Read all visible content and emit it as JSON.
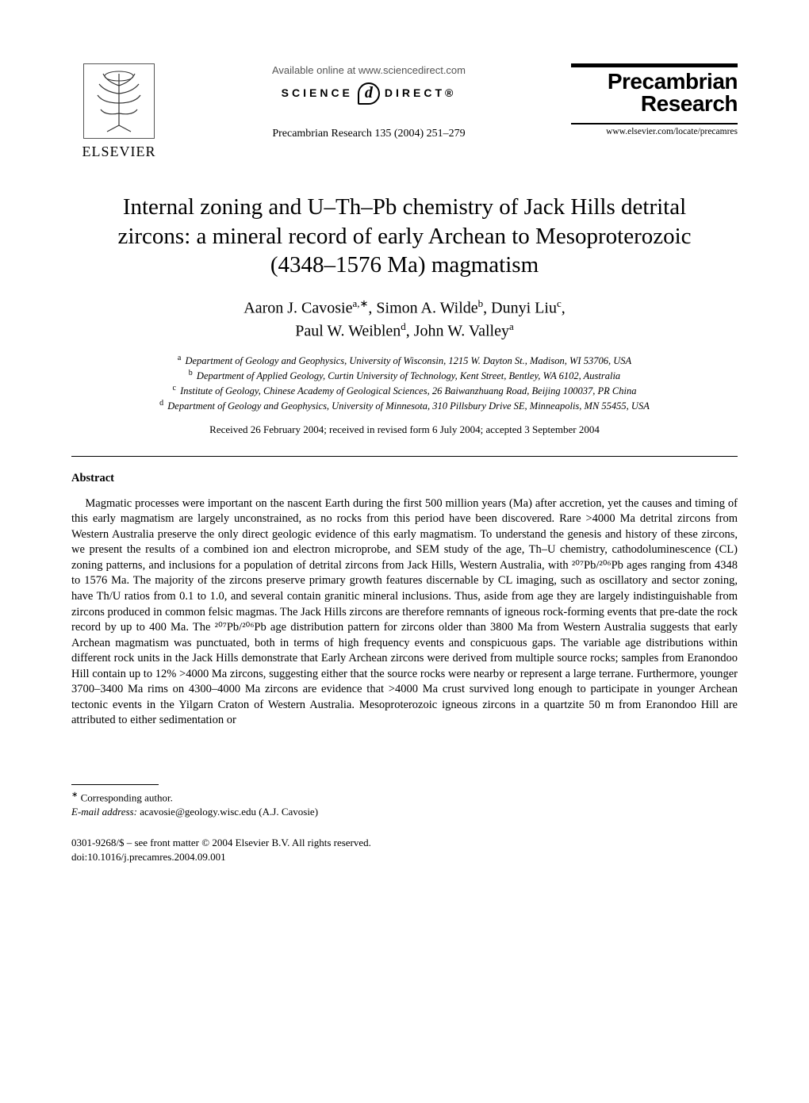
{
  "header": {
    "publisher_name": "ELSEVIER",
    "available_line": "Available online at www.sciencedirect.com",
    "sd_word1": "SCIENCE",
    "sd_at": "d",
    "sd_word2": "DIRECT®",
    "journal_ref": "Precambrian Research 135 (2004) 251–279",
    "journal_name_line1": "Precambrian",
    "journal_name_line2": "Research",
    "journal_url": "www.elsevier.com/locate/precamres"
  },
  "title": "Internal zoning and U–Th–Pb chemistry of Jack Hills detrital zircons: a mineral record of early Archean to Mesoproterozoic (4348–1576 Ma) magmatism",
  "authors_html": "Aaron J. Cavosie<sup>a,∗</sup>, Simon A. Wilde<sup>b</sup>, Dunyi Liu<sup>c</sup>,<br>Paul W. Weiblen<sup>d</sup>, John W. Valley<sup>a</sup>",
  "affiliations": [
    {
      "key": "a",
      "text": "Department of Geology and Geophysics, University of Wisconsin, 1215 W. Dayton St., Madison, WI 53706, USA"
    },
    {
      "key": "b",
      "text": "Department of Applied Geology, Curtin University of Technology, Kent Street, Bentley, WA 6102, Australia"
    },
    {
      "key": "c",
      "text": "Institute of Geology, Chinese Academy of Geological Sciences, 26 Baiwanzhuang Road, Beijing 100037, PR China"
    },
    {
      "key": "d",
      "text": "Department of Geology and Geophysics, University of Minnesota, 310 Pillsbury Drive SE, Minneapolis, MN 55455, USA"
    }
  ],
  "dates": "Received 26 February 2004; received in revised form 6 July 2004; accepted 3 September 2004",
  "abstract_heading": "Abstract",
  "abstract_body": "Magmatic processes were important on the nascent Earth during the first 500 million years (Ma) after accretion, yet the causes and timing of this early magmatism are largely unconstrained, as no rocks from this period have been discovered. Rare >4000 Ma detrital zircons from Western Australia preserve the only direct geologic evidence of this early magmatism. To understand the genesis and history of these zircons, we present the results of a combined ion and electron microprobe, and SEM study of the age, Th–U chemistry, cathodoluminescence (CL) zoning patterns, and inclusions for a population of detrital zircons from Jack Hills, Western Australia, with ²⁰⁷Pb/²⁰⁶Pb ages ranging from 4348 to 1576 Ma. The majority of the zircons preserve primary growth features discernable by CL imaging, such as oscillatory and sector zoning, have Th/U ratios from 0.1 to 1.0, and several contain granitic mineral inclusions. Thus, aside from age they are largely indistinguishable from zircons produced in common felsic magmas. The Jack Hills zircons are therefore remnants of igneous rock-forming events that pre-date the rock record by up to 400 Ma. The ²⁰⁷Pb/²⁰⁶Pb age distribution pattern for zircons older than 3800 Ma from Western Australia suggests that early Archean magmatism was punctuated, both in terms of high frequency events and conspicuous gaps. The variable age distributions within different rock units in the Jack Hills demonstrate that Early Archean zircons were derived from multiple source rocks; samples from Eranondoo Hill contain up to 12% >4000 Ma zircons, suggesting either that the source rocks were nearby or represent a large terrane. Furthermore, younger 3700–3400 Ma rims on 4300–4000 Ma zircons are evidence that >4000 Ma crust survived long enough to participate in younger Archean tectonic events in the Yilgarn Craton of Western Australia. Mesoproterozoic igneous zircons in a quartzite 50 m from Eranondoo Hill are attributed to either sedimentation or",
  "footer": {
    "corr_mark": "∗",
    "corr_text": "Corresponding author.",
    "email_label": "E-mail address:",
    "email_value": "acavosie@geology.wisc.edu (A.J. Cavosie)",
    "copyright": "0301-9268/$ – see front matter © 2004 Elsevier B.V. All rights reserved.",
    "doi": "doi:10.1016/j.precamres.2004.09.001"
  }
}
